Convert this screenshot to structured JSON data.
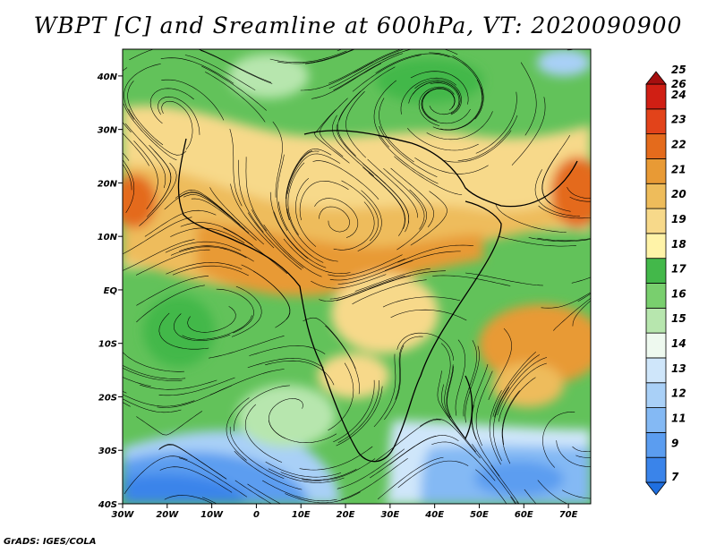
{
  "title": "WBPT [C] and Sreamline at 600hPa, VT: 2020090900",
  "credit": "GrADS: IGES/COLA",
  "map": {
    "lon_range": [
      -30,
      75
    ],
    "lat_range": [
      -40,
      45
    ],
    "lon_ticks": [
      {
        "lon": -30,
        "label": "30W"
      },
      {
        "lon": -20,
        "label": "20W"
      },
      {
        "lon": -10,
        "label": "10W"
      },
      {
        "lon": 0,
        "label": "0"
      },
      {
        "lon": 10,
        "label": "10E"
      },
      {
        "lon": 20,
        "label": "20E"
      },
      {
        "lon": 30,
        "label": "30E"
      },
      {
        "lon": 40,
        "label": "40E"
      },
      {
        "lon": 50,
        "label": "50E"
      },
      {
        "lon": 60,
        "label": "60E"
      },
      {
        "lon": 70,
        "label": "70E"
      }
    ],
    "lat_ticks": [
      {
        "lat": 40,
        "label": "40N"
      },
      {
        "lat": 30,
        "label": "30N"
      },
      {
        "lat": 20,
        "label": "20N"
      },
      {
        "lat": 10,
        "label": "10N"
      },
      {
        "lat": 0,
        "label": "EQ"
      },
      {
        "lat": -10,
        "label": "10S"
      },
      {
        "lat": -20,
        "label": "20S"
      },
      {
        "lat": -30,
        "label": "30S"
      },
      {
        "lat": -40,
        "label": "40S"
      }
    ]
  },
  "colorbar": {
    "levels": [
      {
        "label": "7",
        "color": "#1f6fe0"
      },
      {
        "label": "9",
        "color": "#3a84ea"
      },
      {
        "label": "11",
        "color": "#5b9df0"
      },
      {
        "label": "12",
        "color": "#84b9f4"
      },
      {
        "label": "13",
        "color": "#a9d0f7"
      },
      {
        "label": "14",
        "color": "#cfe6fa"
      },
      {
        "label": "15",
        "color": "#eef9ef"
      },
      {
        "label": "16",
        "color": "#b7e6ae"
      },
      {
        "label": "17",
        "color": "#79cf6e"
      },
      {
        "label": "18",
        "color": "#43b84a"
      },
      {
        "label": "19",
        "color": "#fff3a8"
      },
      {
        "label": "20",
        "color": "#f7d98a"
      },
      {
        "label": "21",
        "color": "#eebc5b"
      },
      {
        "label": "22",
        "color": "#e89a35"
      },
      {
        "label": "23",
        "color": "#e46b1c"
      },
      {
        "label": "24",
        "color": "#e2431a"
      },
      {
        "label": "25",
        "color": "#d01f14"
      },
      {
        "label": "26",
        "color": "#a50f0f"
      }
    ]
  }
}
